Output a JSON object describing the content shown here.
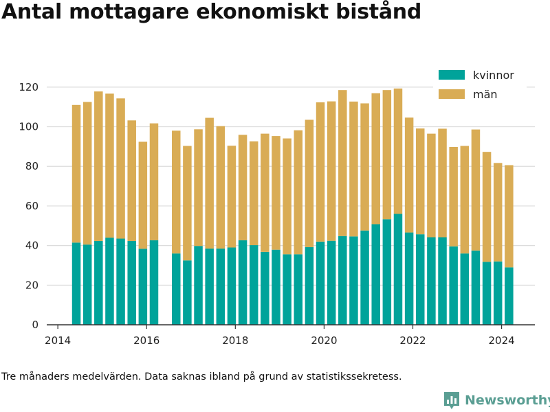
{
  "title": "Antal mottagare ekonomiskt bistånd",
  "footnote": "Tre månaders medelvärden. Data saknas ibland på grund av statistikssekretess.",
  "brand": {
    "name": "Newsworthy",
    "logo_icon": "bar-chart-logo-icon"
  },
  "colors": {
    "kvinnor": "#00a39a",
    "man": "#d9ac55",
    "grid": "#dcdcdc",
    "axis": "#333333"
  },
  "chart_data": {
    "type": "bar",
    "stacked": true,
    "title": "Antal mottagare ekonomiskt bistånd",
    "xlabel": "",
    "ylabel": "",
    "ylim": [
      0,
      130
    ],
    "yticks": [
      "0",
      "20",
      "40",
      "60",
      "80",
      "100",
      "120"
    ],
    "ytick_values": [
      0,
      20,
      40,
      60,
      80,
      100,
      120
    ],
    "xticks": [
      "2014",
      "2016",
      "2018",
      "2020",
      "2022",
      "2024"
    ],
    "xtick_values": [
      "2014-01",
      "2016-01",
      "2018-01",
      "2020-01",
      "2022-01",
      "2024-01"
    ],
    "xlim": [
      "2013-10",
      "2024-10"
    ],
    "grid": true,
    "legend": {
      "placement": "top-right",
      "entries": [
        "kvinnor",
        "män"
      ]
    },
    "x": [
      "2014-06",
      "2014-09",
      "2014-12",
      "2015-03",
      "2015-06",
      "2015-09",
      "2015-12",
      "2016-03",
      "2016-06",
      "2016-09",
      "2016-12",
      "2017-03",
      "2017-06",
      "2017-09",
      "2017-12",
      "2018-03",
      "2018-06",
      "2018-09",
      "2018-12",
      "2019-03",
      "2019-06",
      "2019-09",
      "2019-12",
      "2020-03",
      "2020-06",
      "2020-09",
      "2020-12",
      "2021-03",
      "2021-06",
      "2021-09",
      "2021-12",
      "2022-03",
      "2022-06",
      "2022-09",
      "2022-12",
      "2023-03",
      "2023-06",
      "2023-09",
      "2023-12",
      "2024-03",
      "2024-06"
    ],
    "series": [
      {
        "name": "kvinnor",
        "values": [
          41.5,
          40.5,
          42.3,
          44.0,
          43.5,
          42.3,
          38.4,
          42.7,
          null,
          36.0,
          32.5,
          39.8,
          38.5,
          38.5,
          39.0,
          42.7,
          40.2,
          36.8,
          37.9,
          35.6,
          35.6,
          39.2,
          42.0,
          42.4,
          44.8,
          44.6,
          47.6,
          50.8,
          53.3,
          56.0,
          46.6,
          45.7,
          44.2,
          44.2,
          39.6,
          36.0,
          37.5,
          31.8,
          32.0,
          29.0,
          null
        ]
      },
      {
        "name": "män",
        "values": [
          69.5,
          72.0,
          75.5,
          72.7,
          70.8,
          60.9,
          54.0,
          59.0,
          null,
          62.0,
          57.8,
          58.9,
          66.0,
          61.8,
          51.4,
          53.2,
          52.4,
          59.7,
          57.4,
          58.5,
          62.6,
          64.3,
          70.3,
          70.4,
          73.7,
          68.1,
          64.2,
          66.1,
          65.2,
          63.3,
          58.0,
          53.4,
          52.3,
          54.8,
          50.2,
          54.3,
          61.1,
          55.5,
          49.7,
          51.6,
          null
        ]
      }
    ]
  }
}
